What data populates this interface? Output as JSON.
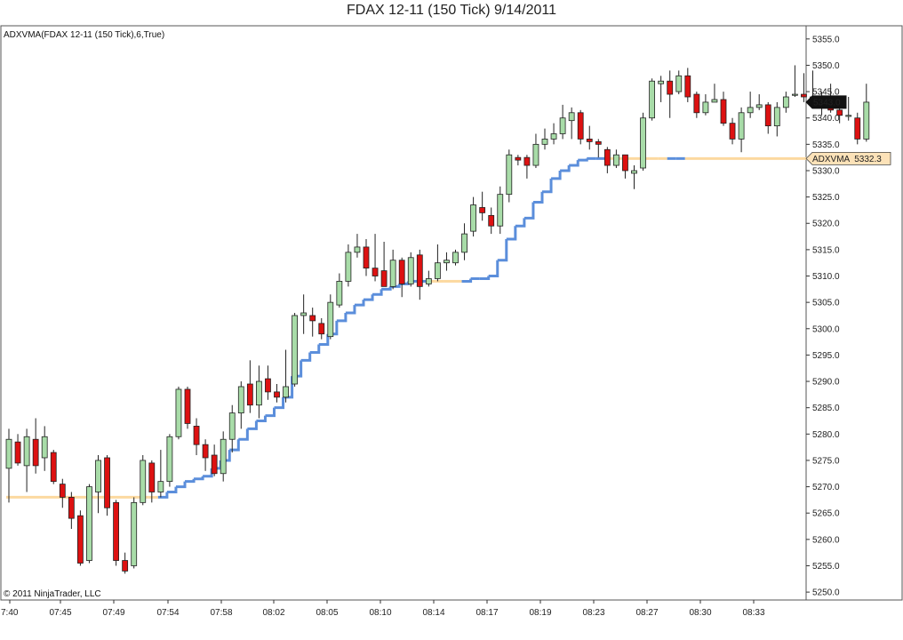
{
  "chart_data": {
    "type": "candlestick",
    "title": "FDAX 12-11 (150 Tick)  9/14/2011",
    "indicator_label": "ADXVMA(FDAX 12-11 (150 Tick),6,True)",
    "copyright": "© 2011 NinjaTrader, LLC",
    "ylim": [
      5248.5,
      5357.5
    ],
    "y_ticks": [
      "5355.0",
      "5350.0",
      "5345.0",
      "5340.0",
      "5335.0",
      "5330.0",
      "5325.0",
      "5320.0",
      "5315.0",
      "5310.0",
      "5305.0",
      "5300.0",
      "5295.0",
      "5290.0",
      "5285.0",
      "5280.0",
      "5275.0",
      "5270.0",
      "5265.0",
      "5260.0",
      "5255.0",
      "5250.0"
    ],
    "x_tick_labels": [
      "7:40",
      "07:45",
      "07:49",
      "07:54",
      "07:58",
      "08:02",
      "08:05",
      "08:10",
      "08:14",
      "08:17",
      "08:19",
      "08:23",
      "08:27",
      "08:30",
      "08:33"
    ],
    "bar_count": 100,
    "candles": [
      [
        5273.5,
        5279,
        5281,
        5267
      ],
      [
        5278.5,
        5274.5,
        5280,
        5274
      ],
      [
        5274,
        5279.5,
        5281,
        5269
      ],
      [
        5279,
        5274,
        5283,
        5272.5
      ],
      [
        5275.5,
        5279.5,
        5281.5,
        5273
      ],
      [
        5276.5,
        5271,
        5277,
        5270.5
      ],
      [
        5270.5,
        5268,
        5271.5,
        5266
      ],
      [
        5268,
        5264,
        5269,
        5262
      ],
      [
        5264.5,
        5255.5,
        5265.5,
        5255
      ],
      [
        5256,
        5270,
        5270.5,
        5255.5
      ],
      [
        5269,
        5275,
        5276,
        5265
      ],
      [
        5275.5,
        5266,
        5276,
        5264.5
      ],
      [
        5267,
        5256,
        5267.5,
        5255
      ],
      [
        5256,
        5254,
        5257.5,
        5253.5
      ],
      [
        5255,
        5267,
        5268,
        5254.5
      ],
      [
        5267,
        5275,
        5276,
        5266.5
      ],
      [
        5274.5,
        5269,
        5275,
        5267
      ],
      [
        5269,
        5271,
        5277,
        5268
      ],
      [
        5271,
        5279.5,
        5280,
        5270
      ],
      [
        5279.5,
        5288.5,
        5289,
        5279
      ],
      [
        5288.5,
        5282,
        5289,
        5281
      ],
      [
        5281.5,
        5278,
        5283,
        5276
      ],
      [
        5278,
        5275.5,
        5279,
        5273
      ],
      [
        5276,
        5272.5,
        5278,
        5272
      ],
      [
        5272.5,
        5279,
        5280.5,
        5271
      ],
      [
        5279,
        5284,
        5285.5,
        5276.5
      ],
      [
        5284,
        5289,
        5290,
        5281
      ],
      [
        5289.5,
        5285.5,
        5294,
        5284
      ],
      [
        5285.5,
        5290,
        5293,
        5283
      ],
      [
        5290.5,
        5288,
        5293,
        5286.5
      ],
      [
        5288,
        5287,
        5289.5,
        5286
      ],
      [
        5287,
        5289,
        5296,
        5286
      ],
      [
        5289.5,
        5302.5,
        5303,
        5289
      ],
      [
        5302.5,
        5303,
        5306.5,
        5299
      ],
      [
        5302.5,
        5301.5,
        5304,
        5298.5
      ],
      [
        5301,
        5299,
        5302,
        5298
      ],
      [
        5298.5,
        5305,
        5306.5,
        5298
      ],
      [
        5304.5,
        5309,
        5310.5,
        5304
      ],
      [
        5309,
        5314.5,
        5316,
        5308
      ],
      [
        5314.5,
        5315.5,
        5318,
        5313.5
      ],
      [
        5315.5,
        5311.5,
        5317,
        5310
      ],
      [
        5311.5,
        5310,
        5318,
        5309
      ],
      [
        5311,
        5308,
        5316.5,
        5308
      ],
      [
        5308,
        5313,
        5315,
        5307.5
      ],
      [
        5313,
        5308.5,
        5313.5,
        5306
      ],
      [
        5308.5,
        5313.5,
        5314.5,
        5308
      ],
      [
        5314,
        5308,
        5315,
        5305.5
      ],
      [
        5308.5,
        5309.5,
        5311,
        5308
      ],
      [
        5309.5,
        5312.5,
        5316,
        5309
      ],
      [
        5312.5,
        5313,
        5314.5,
        5311
      ],
      [
        5312.5,
        5314.5,
        5315,
        5312
      ],
      [
        5314.5,
        5318,
        5320,
        5313
      ],
      [
        5318.5,
        5323.5,
        5325,
        5317.5
      ],
      [
        5323,
        5322,
        5326,
        5320.5
      ],
      [
        5321.5,
        5319.5,
        5323,
        5318
      ],
      [
        5319.5,
        5325.5,
        5327,
        5318
      ],
      [
        5325.5,
        5333,
        5334,
        5324
      ],
      [
        5332.5,
        5332,
        5333,
        5331
      ],
      [
        5332.5,
        5331,
        5333,
        5328.5
      ],
      [
        5331,
        5335,
        5337,
        5330.5
      ],
      [
        5335,
        5336,
        5338,
        5334
      ],
      [
        5336,
        5337,
        5339,
        5335
      ],
      [
        5337,
        5340,
        5342.5,
        5336
      ],
      [
        5339.5,
        5341,
        5342,
        5336
      ],
      [
        5341,
        5336,
        5341.5,
        5335
      ],
      [
        5336,
        5335.5,
        5338.5,
        5334
      ],
      [
        5335.5,
        5335,
        5336,
        5332.5
      ],
      [
        5334,
        5331,
        5334.5,
        5329.5
      ],
      [
        5331,
        5333,
        5334,
        5330.5
      ],
      [
        5333,
        5330,
        5333,
        5328.5
      ],
      [
        5329.5,
        5330,
        5331,
        5326.5
      ],
      [
        5330.5,
        5340,
        5341,
        5330
      ],
      [
        5340,
        5347,
        5347.5,
        5339.5
      ],
      [
        5346.5,
        5347,
        5348,
        5343
      ],
      [
        5347,
        5344.5,
        5349,
        5340
      ],
      [
        5345,
        5348,
        5349,
        5344.5
      ],
      [
        5348,
        5344,
        5349.5,
        5343
      ],
      [
        5344.5,
        5341,
        5345,
        5340
      ],
      [
        5341,
        5343,
        5344.5,
        5340.5
      ],
      [
        5343,
        5343.5,
        5346.5,
        5343
      ],
      [
        5343.5,
        5339,
        5345,
        5338.5
      ],
      [
        5339,
        5336,
        5340,
        5335
      ],
      [
        5336,
        5341,
        5342,
        5333.5
      ],
      [
        5341,
        5342,
        5345,
        5340
      ],
      [
        5342,
        5342.5,
        5344.5,
        5341.5
      ],
      [
        5342.5,
        5338.5,
        5343,
        5337
      ],
      [
        5338.5,
        5342,
        5343,
        5336.5
      ],
      [
        5342,
        5344,
        5345,
        5341
      ],
      [
        5344.5,
        5344.5,
        5350,
        5344
      ],
      [
        5344.5,
        5344,
        5348.5,
        5343
      ],
      [
        5344,
        5343,
        5349,
        5342
      ],
      [
        5343,
        5342,
        5345,
        5340.5
      ],
      [
        5342,
        5341.5,
        5346.5,
        5341
      ],
      [
        5341.5,
        5340.5,
        5343,
        5339
      ],
      [
        5340.5,
        5340.5,
        5344,
        5339.5
      ],
      [
        5340,
        5336,
        5341,
        5335
      ],
      [
        5336,
        5343,
        5346.5,
        5335.5
      ]
    ],
    "adxvma": [
      [
        0,
        5268,
        "flat"
      ],
      [
        16,
        5268,
        "flat"
      ],
      [
        17,
        5268,
        "up"
      ],
      [
        18,
        5269,
        "up"
      ],
      [
        19,
        5270,
        "up"
      ],
      [
        20,
        5271,
        "up"
      ],
      [
        21,
        5271.5,
        "up"
      ],
      [
        22,
        5272,
        "up"
      ],
      [
        23,
        5273.5,
        "up"
      ],
      [
        24,
        5275,
        "up"
      ],
      [
        25,
        5277,
        "up"
      ],
      [
        26,
        5279,
        "up"
      ],
      [
        27,
        5281,
        "up"
      ],
      [
        28,
        5282.5,
        "up"
      ],
      [
        29,
        5283.5,
        "up"
      ],
      [
        30,
        5285,
        "up"
      ],
      [
        31,
        5287,
        "up"
      ],
      [
        32,
        5291,
        "up"
      ],
      [
        33,
        5294,
        "up"
      ],
      [
        34,
        5295.5,
        "up"
      ],
      [
        35,
        5297,
        "up"
      ],
      [
        36,
        5299,
        "up"
      ],
      [
        37,
        5301.5,
        "up"
      ],
      [
        38,
        5303,
        "up"
      ],
      [
        39,
        5304.5,
        "up"
      ],
      [
        40,
        5305.5,
        "up"
      ],
      [
        41,
        5306.5,
        "up"
      ],
      [
        42,
        5307.5,
        "up"
      ],
      [
        43,
        5308,
        "up"
      ],
      [
        44,
        5308.5,
        "up"
      ],
      [
        45,
        5309,
        "up"
      ],
      [
        46,
        5309,
        "up"
      ],
      [
        47,
        5309,
        "flat"
      ],
      [
        48,
        5309,
        "flat"
      ],
      [
        49,
        5309,
        "flat"
      ],
      [
        50,
        5309,
        "flat"
      ],
      [
        51,
        5309,
        "up"
      ],
      [
        52,
        5309.5,
        "up"
      ],
      [
        53,
        5309.5,
        "up"
      ],
      [
        54,
        5310,
        "up"
      ],
      [
        55,
        5313,
        "up"
      ],
      [
        56,
        5317,
        "up"
      ],
      [
        57,
        5319.5,
        "up"
      ],
      [
        58,
        5321,
        "up"
      ],
      [
        59,
        5324,
        "up"
      ],
      [
        60,
        5326,
        "up"
      ],
      [
        61,
        5328.5,
        "up"
      ],
      [
        62,
        5330,
        "up"
      ],
      [
        63,
        5331,
        "up"
      ],
      [
        64,
        5332,
        "up"
      ],
      [
        65,
        5332.3,
        "up"
      ],
      [
        66,
        5332.3,
        "up"
      ],
      [
        67,
        5332.3,
        "flat"
      ],
      [
        68,
        5332.3,
        "flat"
      ],
      [
        69,
        5332.3,
        "flat"
      ],
      [
        70,
        5332.3,
        "flat"
      ],
      [
        71,
        5332.3,
        "flat"
      ],
      [
        72,
        5332.3,
        "flat"
      ],
      [
        73,
        5332.3,
        "flat"
      ],
      [
        74,
        5332.3,
        "up"
      ],
      [
        75,
        5332.3,
        "up"
      ],
      [
        76,
        5332.3,
        "flat"
      ],
      [
        99,
        5332.3,
        "flat"
      ]
    ],
    "last_price": {
      "label": "5343.0",
      "value": 5343.0
    },
    "adxvma_tag": {
      "label": "ADXVMA  5332.3",
      "value": 5332.3
    },
    "colors": {
      "up_body": "#a8dca8",
      "down_body": "#dd1111",
      "wick": "#222222",
      "flat_line": "#fcd9a0",
      "up_line": "#5b8edb",
      "down_line": "#d32f2f"
    },
    "grid": false
  }
}
